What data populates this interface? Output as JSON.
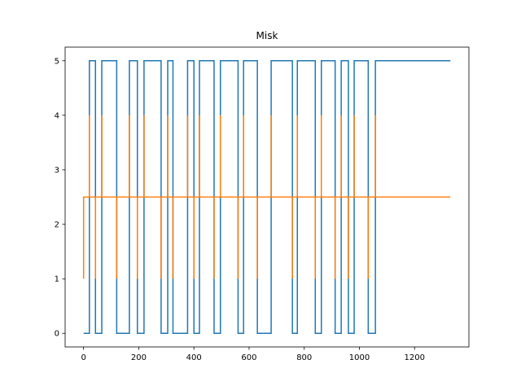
{
  "chart_data": {
    "type": "line",
    "title": "Misk",
    "xlabel": "",
    "ylabel": "",
    "xlim": [
      -67,
      1397
    ],
    "ylim": [
      -0.25,
      5.25
    ],
    "xticks": [
      0,
      200,
      400,
      600,
      800,
      1000,
      1200
    ],
    "yticks": [
      0,
      1,
      2,
      3,
      4,
      5
    ],
    "grid": false,
    "legend": "none",
    "series": [
      {
        "color": "#1f77b4",
        "step": true,
        "x": [
          0,
          21,
          21,
          43,
          43,
          66,
          66,
          120,
          120,
          166,
          166,
          195,
          195,
          219,
          219,
          281,
          281,
          305,
          305,
          324,
          324,
          377,
          377,
          400,
          400,
          420,
          420,
          473,
          473,
          496,
          496,
          560,
          560,
          580,
          580,
          630,
          630,
          680,
          680,
          757,
          757,
          775,
          775,
          840,
          840,
          862,
          862,
          912,
          912,
          934,
          934,
          960,
          960,
          981,
          981,
          1032,
          1032,
          1058,
          1058,
          1330
        ],
        "y": [
          0,
          0,
          5,
          5,
          0,
          0,
          5,
          5,
          0,
          0,
          5,
          5,
          0,
          0,
          5,
          5,
          0,
          0,
          5,
          5,
          0,
          0,
          5,
          5,
          0,
          0,
          5,
          5,
          0,
          0,
          5,
          5,
          0,
          0,
          5,
          5,
          0,
          0,
          5,
          5,
          0,
          0,
          5,
          5,
          0,
          0,
          5,
          5,
          0,
          0,
          5,
          5,
          0,
          0,
          5,
          5,
          0,
          0,
          5,
          5
        ]
      },
      {
        "color": "#ff7f0e",
        "step": false,
        "baseline": 2.5,
        "start": [
          0,
          1
        ],
        "end_x": 1330,
        "spikes_up": [
          21,
          66,
          166,
          219,
          305,
          377,
          420,
          496,
          580,
          680,
          775,
          862,
          934,
          981,
          1058
        ],
        "spikes_down": [
          43,
          120,
          195,
          281,
          324,
          400,
          473,
          560,
          630,
          757,
          840,
          912,
          960,
          1032
        ],
        "up_value": 4,
        "down_value": 1
      }
    ]
  }
}
